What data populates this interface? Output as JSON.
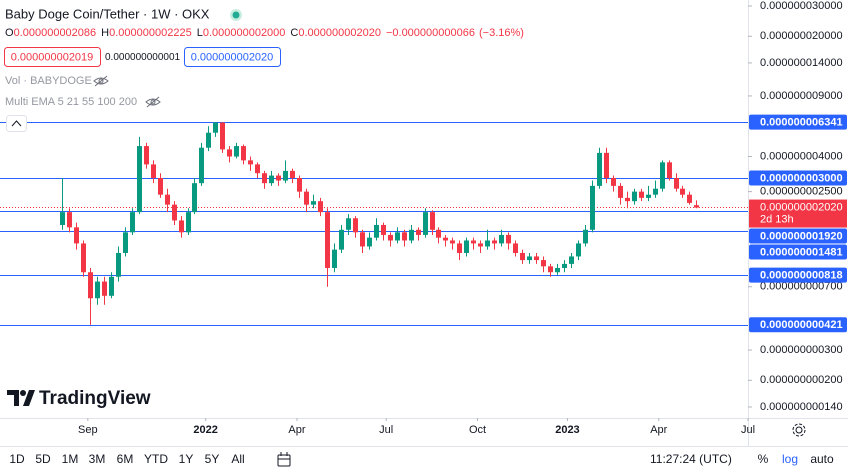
{
  "chart_data": {
    "type": "candlestick",
    "title": "Baby Doge Coin/Tether · 1W · OKX",
    "ohlc_legend": [
      {
        "name": "O",
        "value": 2.086e-09,
        "label": "0.000000002086"
      },
      {
        "name": "H",
        "value": 2.225e-09,
        "label": "0.000000002225"
      },
      {
        "name": "L",
        "value": 2e-09,
        "label": "0.000000002000"
      },
      {
        "name": "C",
        "value": 2.02e-09,
        "label": "0.000000002020"
      }
    ],
    "change": {
      "value": -6.6e-11,
      "label": "−0.000000000066"
    },
    "change_pct": {
      "value": -3.16,
      "label": "(−3.16%)"
    },
    "sell": {
      "value": 2.019e-09,
      "label": "0.000000002019"
    },
    "spread": {
      "value": 1e-12,
      "label": "0.000000000001"
    },
    "buy": {
      "value": 2.02e-09,
      "label": "0.000000002020"
    },
    "indicators": [
      "Vol · BABYDOGE",
      "Multi EMA 5 21 55 100 200"
    ],
    "up_color": "#089981",
    "down_color": "#f23645",
    "log_scale": true,
    "grid": false,
    "categories": [
      null,
      null,
      null,
      null,
      null,
      null,
      null,
      null,
      null,
      null,
      null,
      null,
      null,
      null,
      null,
      null,
      null,
      null,
      null,
      null,
      null,
      null,
      null,
      null,
      null,
      null,
      null,
      null,
      null,
      null,
      null,
      null,
      null,
      null,
      null,
      null,
      null,
      null,
      null,
      null,
      null,
      null,
      null,
      null,
      null,
      null,
      null,
      null,
      null,
      null,
      null,
      null,
      null,
      null,
      null,
      null,
      null,
      null,
      null,
      null,
      null,
      null,
      null,
      null,
      null,
      null,
      null,
      null,
      null,
      null,
      null,
      null,
      null,
      null,
      null,
      null,
      null,
      null,
      null,
      null,
      null,
      null,
      null,
      null,
      null,
      null,
      null,
      null,
      null,
      null,
      null,
      null
    ],
    "open": [
      1.6e-09,
      1.9e-09,
      1.55e-09,
      1.25e-09,
      8.5e-10,
      6e-10,
      7.5e-10,
      6.2e-10,
      8e-10,
      1.1e-09,
      1.45e-09,
      1.9e-09,
      4.6e-09,
      3.6e-09,
      3e-09,
      2.4e-09,
      2.1e-09,
      1.7e-09,
      1.45e-09,
      1.9e-09,
      2.8e-09,
      4.5e-09,
      5.5e-09,
      6.3e-09,
      4.4e-09,
      4e-09,
      4.6e-09,
      3.8e-09,
      3.6e-09,
      3.2e-09,
      2.8e-09,
      3.1e-09,
      2.9e-09,
      3.3e-09,
      3e-09,
      2.5e-09,
      2.1e-09,
      2.2e-09,
      1.9e-09,
      9e-10,
      1.15e-09,
      1.5e-09,
      1.75e-09,
      1.45e-09,
      1.2e-09,
      1.35e-09,
      1.6e-09,
      1.4e-09,
      1.3e-09,
      1.45e-09,
      1.3e-09,
      1.5e-09,
      1.4e-09,
      1.9e-09,
      1.5e-09,
      1.35e-09,
      1.3e-09,
      1.25e-09,
      1.1e-09,
      1.3e-09,
      1.25e-09,
      1.2e-09,
      1.3e-09,
      1.25e-09,
      1.4e-09,
      1.25e-09,
      1.1e-09,
      1e-09,
      1.05e-09,
      1e-09,
      9.2e-10,
      8.5e-10,
      9e-10,
      9.5e-10,
      1.05e-09,
      1.25e-09,
      1.5e-09,
      2.7e-09,
      4.2e-09,
      3e-09,
      2.7e-09,
      2.3e-09,
      2.2e-09,
      2.5e-09,
      2.3e-09,
      2.4e-09,
      2.6e-09,
      3.7e-09,
      3e-09,
      2.6e-09,
      2.4e-09,
      2.086e-09
    ],
    "high": [
      3e-09,
      2e-09,
      1.65e-09,
      1.3e-09,
      9e-10,
      8e-10,
      8e-10,
      8.5e-10,
      1.2e-09,
      1.55e-09,
      2e-09,
      5.2e-09,
      4.8e-09,
      3.8e-09,
      3.2e-09,
      2.6e-09,
      2.2e-09,
      1.8e-09,
      2e-09,
      3e-09,
      4.8e-09,
      6e-09,
      6.34e-09,
      6.34e-09,
      4.6e-09,
      4.8e-09,
      4.7e-09,
      4e-09,
      3.7e-09,
      3.3e-09,
      3.3e-09,
      3.2e-09,
      3.8e-09,
      3.4e-09,
      3.1e-09,
      2.6e-09,
      2.4e-09,
      2.3e-09,
      2e-09,
      1.25e-09,
      1.6e-09,
      1.85e-09,
      1.8e-09,
      1.5e-09,
      1.45e-09,
      1.75e-09,
      1.65e-09,
      1.45e-09,
      1.55e-09,
      1.5e-09,
      1.6e-09,
      1.55e-09,
      2e-09,
      1.95e-09,
      1.55e-09,
      1.4e-09,
      1.35e-09,
      1.3e-09,
      1.35e-09,
      1.35e-09,
      1.3e-09,
      1.5e-09,
      1.35e-09,
      1.5e-09,
      1.45e-09,
      1.3e-09,
      1.15e-09,
      1.1e-09,
      1.1e-09,
      1.05e-09,
      9.5e-10,
      9.5e-10,
      1e-09,
      1.1e-09,
      1.3e-09,
      1.6e-09,
      2.9e-09,
      4.5e-09,
      4.5e-09,
      3.1e-09,
      2.8e-09,
      2.5e-09,
      2.6e-09,
      2.6e-09,
      2.7e-09,
      2.9e-09,
      3.8e-09,
      3.8e-09,
      3.2e-09,
      2.7e-09,
      2.5e-09,
      2.225e-09
    ],
    "low": [
      1.5e-09,
      1.45e-09,
      1.15e-09,
      8e-10,
      4.2e-10,
      5.5e-10,
      5.5e-10,
      6e-10,
      7.5e-10,
      1.05e-09,
      1.4e-09,
      1.85e-09,
      3.4e-09,
      2.8e-09,
      2.3e-09,
      1.9e-09,
      1.6e-09,
      1.35e-09,
      1.4e-09,
      1.85e-09,
      2.7e-09,
      4.3e-09,
      5.2e-09,
      4.2e-09,
      3.7e-09,
      3.9e-09,
      3.6e-09,
      3.3e-09,
      3e-09,
      2.6e-09,
      2.7e-09,
      2.7e-09,
      2.8e-09,
      2.8e-09,
      2.3e-09,
      1.9e-09,
      2e-09,
      1.8e-09,
      7e-10,
      8.5e-10,
      1.1e-09,
      1.4e-09,
      1.35e-09,
      1.1e-09,
      1.15e-09,
      1.3e-09,
      1.3e-09,
      1.2e-09,
      1.25e-09,
      1.2e-09,
      1.25e-09,
      1.3e-09,
      1.35e-09,
      1.4e-09,
      1.25e-09,
      1.2e-09,
      1.15e-09,
      1e-09,
      1.05e-09,
      1.15e-09,
      1.1e-09,
      1.15e-09,
      1.15e-09,
      1.2e-09,
      1.15e-09,
      1.05e-09,
      9.5e-10,
      9.5e-10,
      9.5e-10,
      8.5e-10,
      8e-10,
      8.2e-10,
      8.5e-10,
      9e-10,
      1e-09,
      1.2e-09,
      1.45e-09,
      2.6e-09,
      2.8e-09,
      2.5e-09,
      2.1e-09,
      2e-09,
      2.1e-09,
      2.2e-09,
      2.2e-09,
      2.3e-09,
      2.5e-09,
      2.9e-09,
      2.5e-09,
      2.3e-09,
      2.1e-09,
      2e-09
    ],
    "close": [
      1.9e-09,
      1.55e-09,
      1.25e-09,
      8.5e-10,
      6e-10,
      7.5e-10,
      6.2e-10,
      8e-10,
      1.1e-09,
      1.45e-09,
      1.9e-09,
      4.6e-09,
      3.6e-09,
      3e-09,
      2.4e-09,
      2.1e-09,
      1.7e-09,
      1.45e-09,
      1.9e-09,
      2.8e-09,
      4.5e-09,
      5.5e-09,
      6.3e-09,
      4.4e-09,
      4e-09,
      4.6e-09,
      3.8e-09,
      3.6e-09,
      3.2e-09,
      2.8e-09,
      3.1e-09,
      2.9e-09,
      3.3e-09,
      3e-09,
      2.5e-09,
      2.1e-09,
      2.2e-09,
      1.9e-09,
      9e-10,
      1.15e-09,
      1.5e-09,
      1.75e-09,
      1.45e-09,
      1.2e-09,
      1.35e-09,
      1.6e-09,
      1.4e-09,
      1.3e-09,
      1.45e-09,
      1.3e-09,
      1.5e-09,
      1.4e-09,
      1.9e-09,
      1.5e-09,
      1.35e-09,
      1.3e-09,
      1.25e-09,
      1.1e-09,
      1.3e-09,
      1.25e-09,
      1.2e-09,
      1.3e-09,
      1.25e-09,
      1.4e-09,
      1.25e-09,
      1.1e-09,
      1e-09,
      1.05e-09,
      1e-09,
      9.2e-10,
      8.5e-10,
      9e-10,
      9.5e-10,
      1.05e-09,
      1.25e-09,
      1.5e-09,
      2.7e-09,
      4.2e-09,
      3e-09,
      2.7e-09,
      2.3e-09,
      2.2e-09,
      2.5e-09,
      2.3e-09,
      2.4e-09,
      2.6e-09,
      3.7e-09,
      3e-09,
      2.6e-09,
      2.4e-09,
      2.15e-09,
      2.02e-09
    ],
    "xlim": [
      -8.9,
      98.4
    ],
    "xticks": [
      {
        "value": 3.7,
        "label": "Sep"
      },
      {
        "value": 20.6,
        "label": "2022"
      },
      {
        "value": 33.7,
        "label": "Apr"
      },
      {
        "value": 46.5,
        "label": "Jul"
      },
      {
        "value": 59.6,
        "label": "Oct"
      },
      {
        "value": 72.5,
        "label": "2023"
      },
      {
        "value": 85.6,
        "label": "Apr"
      },
      {
        "value": 98.4,
        "label": "Jul"
      }
    ],
    "ylim": [
      1.208e-10,
      3.25e-08
    ],
    "yticks": [
      {
        "value": 3e-08,
        "label": "0.000000030000"
      },
      {
        "value": 2e-08,
        "label": "0.000000020000"
      },
      {
        "value": 1.4e-08,
        "label": "0.000000014000"
      },
      {
        "value": 9e-09,
        "label": "0.000000009000"
      },
      {
        "value": 4e-09,
        "label": "0.000000004000"
      },
      {
        "value": 2.5e-09,
        "label": "0.000000002500"
      },
      {
        "value": 7e-10,
        "label": "0.000000000700"
      },
      {
        "value": 3e-10,
        "label": "0.000000000300"
      },
      {
        "value": 2e-10,
        "label": "0.000000000200"
      },
      {
        "value": 1.4e-10,
        "label": "0.000000000140"
      }
    ],
    "hlines": [
      {
        "value": 6.341e-09,
        "label": "0.000000006341"
      },
      {
        "value": 3e-09,
        "label": "0.000000003000"
      },
      {
        "value": 1.92e-09,
        "label": "0.000000001920"
      },
      {
        "value": 1.481e-09,
        "label": "0.000000001481"
      },
      {
        "value": 8.18e-10,
        "label": "0.000000000818"
      },
      {
        "value": 4.21e-10,
        "label": "0.000000000421"
      }
    ],
    "hline_color": "#2962ff",
    "last_price": {
      "value": 2.02e-09,
      "label": "0.000000002020"
    },
    "countdown": "2d 13h",
    "ranges": [
      "1D",
      "5D",
      "1M",
      "3M",
      "6M",
      "YTD",
      "1Y",
      "5Y",
      "All"
    ],
    "clock": "11:27:24 (UTC)",
    "scale_options": [
      "%",
      "log",
      "auto"
    ],
    "brand": "TradingView"
  }
}
